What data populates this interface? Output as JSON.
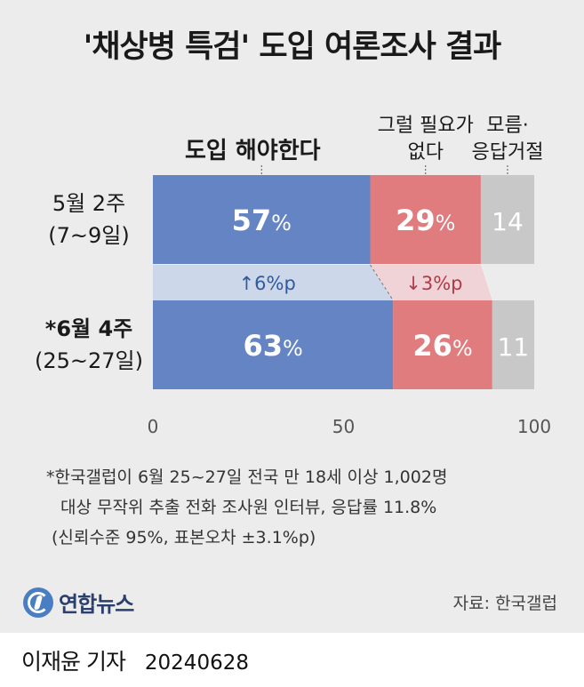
{
  "title": "'채상병 특검' 도입 여론조사 결과",
  "chart_data": {
    "type": "bar",
    "stacked": true,
    "orientation": "horizontal",
    "categories": [
      {
        "line1": "5월 2주",
        "line2": "(7~9일)"
      },
      {
        "line1": "*6월 4주",
        "line2": "(25~27일)"
      }
    ],
    "series": [
      {
        "name": "도입 해야한다",
        "name_lines": [
          "도입 해야한다"
        ],
        "values": [
          57,
          63
        ],
        "color": "#6484c4",
        "label_color": "#ffffff",
        "big_labels": true
      },
      {
        "name": "그럴 필요가 없다",
        "name_lines": [
          "그럴 필요가",
          "없다"
        ],
        "values": [
          29,
          26
        ],
        "color": "#e07b7e",
        "label_color": "#ffffff",
        "big_labels": true
      },
      {
        "name": "모름·응답거절",
        "name_lines": [
          "모름·",
          "응답거절"
        ],
        "values": [
          14,
          11
        ],
        "color": "#c8c8c8",
        "label_color": "#ffffff",
        "big_labels": false
      }
    ],
    "changes": [
      {
        "series": "도입 해야한다",
        "text": "↑6%p",
        "color": "#2f5a9e",
        "band_color": "#cdd7ea"
      },
      {
        "series": "그럴 필요가 없다",
        "text": "↓3%p",
        "color": "#b03a48",
        "band_color": "#f0d3d6"
      }
    ],
    "xlim": [
      0,
      100
    ],
    "xticks": [
      "0",
      "50",
      "100"
    ],
    "grid": false,
    "legend": "top (labels above bars)"
  },
  "footnote": [
    "*한국갤럽이 6월 25~27일 전국 만 18세 이상 1,002명",
    "대상 무작위 추출 전화 조사원 인터뷰, 응답률 11.8%",
    "(신뢰수준 95%, 표본오차 ±3.1%p)"
  ],
  "logo_text": "연합뉴스",
  "source": "자료: 한국갤럽",
  "byline": {
    "name": "이재윤 기자",
    "date": "20240628"
  }
}
